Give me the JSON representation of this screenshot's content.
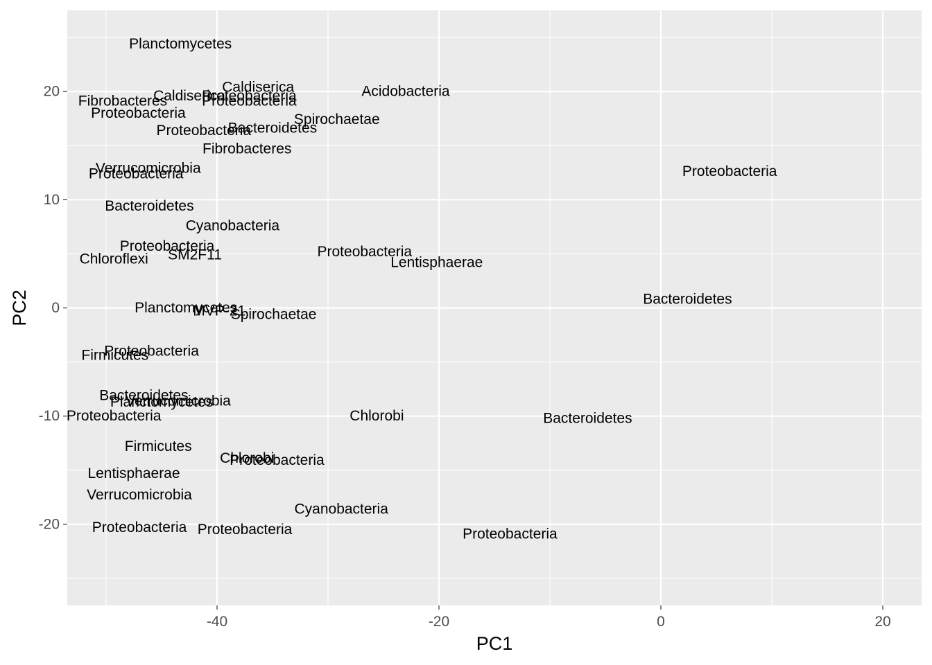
{
  "chart_data": {
    "type": "scatter",
    "title": "",
    "xlabel": "PC1",
    "ylabel": "PC2",
    "xlim": [
      -53.5,
      23.5
    ],
    "ylim": [
      -27.5,
      27.5
    ],
    "x_ticks": [
      -40,
      -20,
      0,
      20
    ],
    "y_ticks": [
      -20,
      -10,
      0,
      10,
      20
    ],
    "x_tick_labels": [
      "-40",
      "-20",
      "0",
      "20"
    ],
    "y_tick_labels": [
      "-20",
      "-10",
      "0",
      "10",
      "20"
    ],
    "grid": true,
    "panel_color": "#ebebeb",
    "grid_color": "#ffffff",
    "point_labels": [
      {
        "x": -43.3,
        "y": 24.4,
        "label": "Planctomycetes"
      },
      {
        "x": -36.3,
        "y": 20.4,
        "label": "Caldiserica"
      },
      {
        "x": -23.0,
        "y": 20.0,
        "label": "Acidobacteria"
      },
      {
        "x": -42.5,
        "y": 19.6,
        "label": "Caldiserica"
      },
      {
        "x": -37.1,
        "y": 19.6,
        "label": "Proteobacteria"
      },
      {
        "x": -37.1,
        "y": 19.1,
        "label": "Proteobacteria"
      },
      {
        "x": -48.5,
        "y": 19.1,
        "label": "Fibrobacteres"
      },
      {
        "x": -47.1,
        "y": 18.0,
        "label": "Proteobacteria"
      },
      {
        "x": -29.2,
        "y": 17.4,
        "label": "Spirochaetae"
      },
      {
        "x": -35.0,
        "y": 16.6,
        "label": "Bacteroidetes"
      },
      {
        "x": -41.2,
        "y": 16.4,
        "label": "Proteobacteria"
      },
      {
        "x": -37.3,
        "y": 14.7,
        "label": "Fibrobacteres"
      },
      {
        "x": -46.2,
        "y": 12.9,
        "label": "Verrucomicrobia"
      },
      {
        "x": -47.3,
        "y": 12.4,
        "label": "Proteobacteria"
      },
      {
        "x": 6.2,
        "y": 12.6,
        "label": "Proteobacteria"
      },
      {
        "x": -46.1,
        "y": 9.4,
        "label": "Bacteroidetes"
      },
      {
        "x": -38.6,
        "y": 7.6,
        "label": "Cyanobacteria"
      },
      {
        "x": -44.5,
        "y": 5.7,
        "label": "Proteobacteria"
      },
      {
        "x": -26.7,
        "y": 5.2,
        "label": "Proteobacteria"
      },
      {
        "x": -42.0,
        "y": 4.9,
        "label": "SM2F11"
      },
      {
        "x": -49.3,
        "y": 4.5,
        "label": "Chloroflexi"
      },
      {
        "x": -20.2,
        "y": 4.2,
        "label": "Lentisphaerae"
      },
      {
        "x": 2.4,
        "y": 0.8,
        "label": "Bacteroidetes"
      },
      {
        "x": -42.8,
        "y": 0.0,
        "label": "Planctomycetes"
      },
      {
        "x": -39.8,
        "y": -0.3,
        "label": "MVP-21"
      },
      {
        "x": -34.9,
        "y": -0.6,
        "label": "Spirochaetae"
      },
      {
        "x": -45.9,
        "y": -4.0,
        "label": "Proteobacteria"
      },
      {
        "x": -49.2,
        "y": -4.4,
        "label": "Firmicutes"
      },
      {
        "x": -46.6,
        "y": -8.1,
        "label": "Bacteroidetes"
      },
      {
        "x": -43.5,
        "y": -8.6,
        "label": "Verrucomicrobia"
      },
      {
        "x": -45.0,
        "y": -8.7,
        "label": "Planctomycetes"
      },
      {
        "x": -49.3,
        "y": -10.0,
        "label": "Proteobacteria"
      },
      {
        "x": -25.6,
        "y": -10.0,
        "label": "Chlorobi"
      },
      {
        "x": -6.6,
        "y": -10.2,
        "label": "Bacteroidetes"
      },
      {
        "x": -45.3,
        "y": -12.8,
        "label": "Firmicutes"
      },
      {
        "x": -37.3,
        "y": -13.9,
        "label": "Chlorobi"
      },
      {
        "x": -34.6,
        "y": -14.1,
        "label": "Proteobacteria"
      },
      {
        "x": -47.5,
        "y": -15.3,
        "label": "Lentisphaerae"
      },
      {
        "x": -47.0,
        "y": -17.3,
        "label": "Verrucomicrobia"
      },
      {
        "x": -28.8,
        "y": -18.6,
        "label": "Cyanobacteria"
      },
      {
        "x": -47.0,
        "y": -20.3,
        "label": "Proteobacteria"
      },
      {
        "x": -37.5,
        "y": -20.5,
        "label": "Proteobacteria"
      },
      {
        "x": -13.6,
        "y": -20.9,
        "label": "Proteobacteria"
      }
    ]
  }
}
